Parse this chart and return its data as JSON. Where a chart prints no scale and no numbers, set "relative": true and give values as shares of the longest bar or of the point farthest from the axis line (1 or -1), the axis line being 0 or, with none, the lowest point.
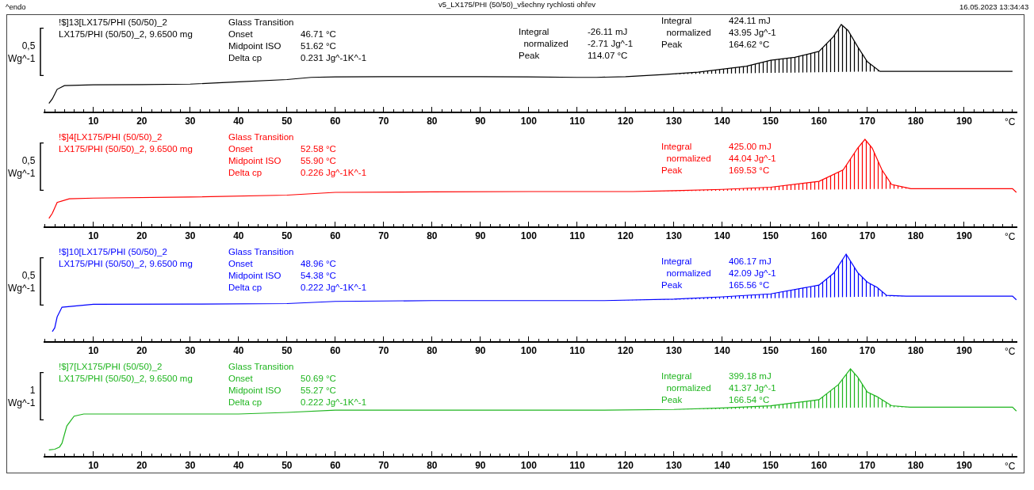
{
  "chart_data": [
    {
      "type": "line",
      "title": "v5_LX175/PHI (50/50)_všechny rychlosti ohřev",
      "xlabel": "°C",
      "ylabel": "0,5 Wg^-1",
      "relative": true,
      "xlim": [
        -0.3,
        201
      ],
      "xticks": [
        10,
        20,
        30,
        40,
        50,
        60,
        70,
        80,
        90,
        100,
        110,
        120,
        130,
        140,
        150,
        160,
        170,
        180,
        190
      ],
      "annotations": [
        "^endo",
        "16.05.2023 13:34:43",
        "!$]13[LX175/PHI (50/50)_2\nLX175/PHI (50/50)_2, 9.6500 mg",
        "Glass Transition\nOnset\nMidpoint ISO\nDelta cp",
        "\n46.71 °C\n51.62 °C\n0.231 Jg^-1K^-1",
        "Integral\n  normalized\nPeak",
        "-26.11 mJ\n-2.71 Jg^-1\n114.07 °C",
        "Integral\n  normalized\nPeak",
        "424.11 mJ\n43.95 Jg^-1\n164.62 °C"
      ],
      "x": [
        0.8,
        1.5,
        2.5,
        4,
        10,
        20,
        30,
        40,
        50,
        55,
        60,
        70,
        90,
        100,
        110,
        114,
        120,
        128,
        135,
        140,
        145,
        150,
        155,
        160,
        163,
        164.6,
        166,
        168,
        170,
        172.6,
        175,
        180,
        190,
        200
      ],
      "series": [
        {
          "color": "#000000",
          "values": [
            0.094,
            0.146,
            0.256,
            0.299,
            0.308,
            0.311,
            0.316,
            0.342,
            0.368,
            0.393,
            0.398,
            0.402,
            0.402,
            0.398,
            0.393,
            0.393,
            0.402,
            0.427,
            0.453,
            0.487,
            0.522,
            0.59,
            0.624,
            0.692,
            0.863,
            1,
            0.932,
            0.744,
            0.572,
            0.462,
            0.462,
            0.462,
            0.462,
            0.462
          ],
          "lower": [
            null,
            null,
            null,
            null,
            null,
            null,
            null,
            null,
            null,
            null,
            null,
            null,
            null,
            null,
            null,
            null,
            null,
            0.427,
            0.433,
            0.437,
            0.441,
            0.445,
            0.448,
            0.453,
            0.455,
            0.456,
            0.457,
            0.459,
            0.46,
            0.462,
            null,
            null,
            null,
            null
          ],
          "upper": [
            null,
            null,
            null,
            null,
            null,
            null,
            null,
            null,
            null,
            null,
            null,
            null,
            null,
            null,
            null,
            null,
            null,
            0.427,
            0.453,
            0.487,
            0.522,
            0.59,
            0.624,
            0.692,
            0.863,
            1,
            0.932,
            0.744,
            0.572,
            0.462,
            null,
            null,
            null,
            null
          ]
        }
      ]
    },
    {
      "type": "line",
      "xlabel": "°C",
      "ylabel": "0,5 Wg^-1",
      "relative": true,
      "xlim": [
        -0.3,
        201
      ],
      "xticks": [
        10,
        20,
        30,
        40,
        50,
        60,
        70,
        80,
        90,
        100,
        110,
        120,
        130,
        140,
        150,
        160,
        170,
        180,
        190
      ],
      "annotations": [
        "!$]4[LX175/PHI (50/50)_2\nLX175/PHI (50/50)_2, 9.6500 mg",
        "Glass Transition\nOnset\nMidpoint ISO\nDelta cp",
        "\n52.58 °C\n55.90 °C\n0.226 Jg^-1K^-1",
        "Integral\n  normalized\nPeak",
        "425.00 mJ\n44.04 Jg^-1\n169.53 °C"
      ],
      "x": [
        0.8,
        1.5,
        2.5,
        5,
        10,
        30,
        50,
        60,
        80,
        100,
        121.5,
        130,
        140,
        150,
        160,
        165,
        168,
        169.5,
        171,
        173,
        175,
        179,
        190,
        200,
        200.8
      ],
      "series": [
        {
          "color": "#ff0000",
          "values": [
            0.092,
            0.15,
            0.275,
            0.317,
            0.325,
            0.337,
            0.359,
            0.391,
            0.396,
            0.4,
            0.4,
            0.41,
            0.425,
            0.45,
            0.517,
            0.65,
            0.9,
            1,
            0.9,
            0.65,
            0.482,
            0.433,
            0.433,
            0.433,
            0.391
          ],
          "lower": [
            null,
            null,
            null,
            null,
            null,
            null,
            null,
            null,
            null,
            null,
            0.4,
            0.404,
            0.41,
            0.416,
            0.422,
            0.425,
            0.427,
            0.428,
            0.429,
            0.43,
            0.431,
            0.433,
            null,
            null,
            null
          ],
          "upper": [
            null,
            null,
            null,
            null,
            null,
            null,
            null,
            null,
            null,
            null,
            0.4,
            0.41,
            0.425,
            0.45,
            0.517,
            0.65,
            0.9,
            1,
            0.9,
            0.65,
            0.482,
            0.433,
            null,
            null,
            null
          ]
        }
      ]
    },
    {
      "type": "line",
      "xlabel": "°C",
      "ylabel": "0,5 Wg^-1",
      "relative": true,
      "xlim": [
        -0.3,
        201
      ],
      "xticks": [
        10,
        20,
        30,
        40,
        50,
        60,
        70,
        80,
        90,
        100,
        110,
        120,
        130,
        140,
        150,
        160,
        170,
        180,
        190
      ],
      "annotations": [
        "!$]10[LX175/PHI (50/50)_2\nLX175/PHI (50/50)_2, 9.6500 mg",
        "Glass Transition\nOnset\nMidpoint ISO\nDelta cp",
        "\n48.96 °C\n54.38 °C\n0.222 Jg^-1K^-1",
        "Integral\n  normalized\nPeak",
        "406.17 mJ\n42.09 Jg^-1\n165.56 °C"
      ],
      "x": [
        1.5,
        2,
        2.5,
        3.5,
        10,
        30,
        50,
        60,
        80,
        100,
        115.5,
        130,
        140,
        150,
        160,
        163,
        165.6,
        168,
        170,
        172,
        174,
        178,
        190,
        200,
        200.8
      ],
      "series": [
        {
          "color": "#0000ff",
          "values": [
            0.11,
            0.153,
            0.279,
            0.39,
            0.423,
            0.426,
            0.432,
            0.457,
            0.466,
            0.466,
            0.466,
            0.483,
            0.509,
            0.543,
            0.644,
            0.779,
            1,
            0.788,
            0.678,
            0.618,
            0.526,
            0.517,
            0.517,
            0.517,
            0.475
          ],
          "lower": [
            null,
            null,
            null,
            null,
            null,
            null,
            null,
            null,
            null,
            null,
            0.466,
            0.478,
            0.486,
            0.494,
            0.502,
            0.504,
            0.506,
            0.508,
            0.51,
            0.511,
            0.513,
            0.517,
            null,
            null,
            null
          ],
          "upper": [
            null,
            null,
            null,
            null,
            null,
            null,
            null,
            null,
            null,
            null,
            0.466,
            0.483,
            0.509,
            0.543,
            0.644,
            0.779,
            1,
            0.788,
            0.678,
            0.618,
            0.526,
            0.517,
            null,
            null,
            null
          ]
        }
      ]
    },
    {
      "type": "line",
      "xlabel": "°C",
      "ylabel": "1 Wg^-1",
      "relative": true,
      "xlim": [
        -0.3,
        201
      ],
      "xticks": [
        10,
        20,
        30,
        40,
        50,
        60,
        70,
        80,
        90,
        100,
        110,
        120,
        130,
        140,
        150,
        160,
        170,
        180,
        190
      ],
      "annotations": [
        "!$]7[LX175/PHI (50/50)_2\nLX175/PHI (50/50)_2, 9.6500 mg",
        "Glass Transition\nOnset\nMidpoint ISO\nDelta cp",
        "\n50.69 °C\n55.27 °C\n0.222 Jg^-1K^-1",
        "Integral\n  normalized\nPeak",
        "399.18 mJ\n41.37 Jg^-1\n166.54 °C"
      ],
      "x": [
        0.8,
        2,
        3,
        3.5,
        4.5,
        6,
        8,
        10,
        40,
        50,
        60,
        100,
        115.5,
        130,
        140,
        150,
        160,
        164,
        166.5,
        168,
        170,
        172,
        175,
        178.8,
        190,
        200,
        200.8
      ],
      "series": [
        {
          "color": "#1fb51f",
          "values": [
            0.069,
            0.077,
            0.103,
            0.146,
            0.345,
            0.457,
            0.482,
            0.482,
            0.482,
            0.5,
            0.526,
            0.526,
            0.526,
            0.534,
            0.552,
            0.577,
            0.646,
            0.819,
            1,
            0.905,
            0.733,
            0.681,
            0.577,
            0.56,
            0.56,
            0.56,
            0.516
          ],
          "lower": [
            null,
            null,
            null,
            null,
            null,
            null,
            null,
            null,
            null,
            null,
            null,
            null,
            0.526,
            0.534,
            0.539,
            0.545,
            0.55,
            0.552,
            0.554,
            0.555,
            0.556,
            0.557,
            0.559,
            0.56,
            null,
            null,
            null
          ],
          "upper": [
            null,
            null,
            null,
            null,
            null,
            null,
            null,
            null,
            null,
            null,
            null,
            null,
            0.526,
            0.534,
            0.552,
            0.577,
            0.646,
            0.819,
            1,
            0.905,
            0.733,
            0.681,
            0.577,
            0.56,
            null,
            null,
            null
          ]
        }
      ]
    }
  ]
}
